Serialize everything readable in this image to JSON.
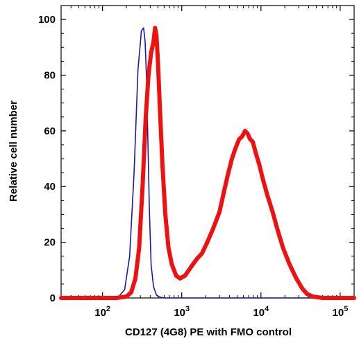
{
  "chart_data": {
    "type": "line",
    "xlabel": "CD127 (4G8) PE with FMO control",
    "ylabel": "Relative cell number",
    "x_scale": "log",
    "xlim": [
      30,
      150000
    ],
    "ylim": [
      0,
      105
    ],
    "y_ticks": [
      0,
      20,
      40,
      60,
      80,
      100
    ],
    "x_ticks": [
      {
        "value": 100,
        "base": "10",
        "exp": "2"
      },
      {
        "value": 1000,
        "base": "10",
        "exp": "3"
      },
      {
        "value": 10000,
        "base": "10",
        "exp": "4"
      },
      {
        "value": 100000,
        "base": "10",
        "exp": "5"
      }
    ],
    "grid": false,
    "legend": "none",
    "series": [
      {
        "color": "#1a1aa6",
        "x": [
          30,
          100,
          160,
          190,
          220,
          250,
          280,
          310,
          330,
          345,
          360,
          375,
          390,
          410,
          440,
          480,
          530,
          600,
          700,
          1000,
          10000,
          150000
        ],
        "y": [
          0,
          0,
          0.5,
          3,
          15,
          45,
          82,
          96,
          97,
          92,
          78,
          55,
          32,
          12,
          4,
          1,
          0.3,
          0,
          0,
          0,
          0,
          0
        ]
      },
      {
        "color": "#ee1111",
        "x": [
          30,
          150,
          200,
          230,
          260,
          290,
          320,
          350,
          380,
          410,
          440,
          460,
          480,
          500,
          530,
          570,
          620,
          680,
          750,
          850,
          950,
          1100,
          1300,
          1550,
          1800,
          2100,
          2500,
          3000,
          3400,
          3800,
          4300,
          4800,
          5300,
          5800,
          6300,
          6800,
          7300,
          7900,
          8600,
          9500,
          10500,
          12000,
          14000,
          16000,
          19000,
          23000,
          28000,
          33000,
          38000,
          45000,
          60000,
          150000
        ],
        "y": [
          0,
          0,
          0.5,
          2,
          7,
          18,
          40,
          64,
          80,
          88,
          92,
          97,
          94,
          85,
          68,
          48,
          30,
          18,
          12,
          8,
          7,
          8,
          11,
          14,
          16,
          20,
          25,
          31,
          38,
          44,
          50,
          54,
          57,
          58,
          60,
          59,
          57,
          56,
          52,
          48,
          43,
          37,
          31,
          25,
          18,
          12,
          7,
          3.5,
          1.5,
          0.5,
          0,
          0
        ]
      }
    ]
  }
}
